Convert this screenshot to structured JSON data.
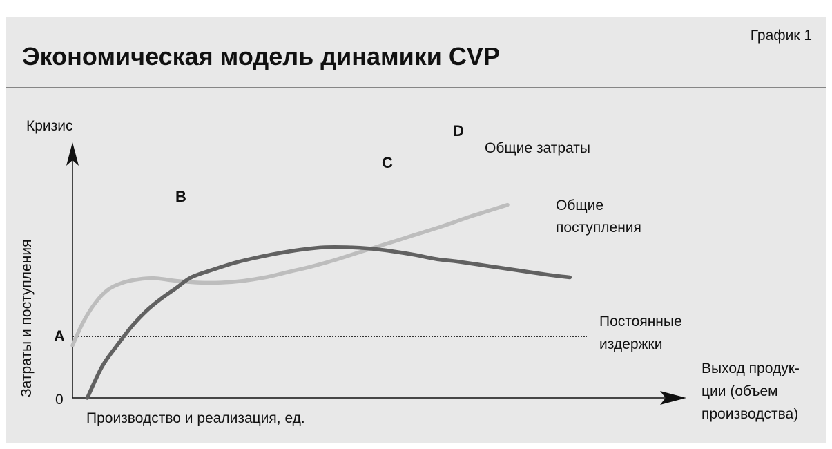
{
  "chart_data": {
    "type": "line",
    "title": "Экономическая модель динамики CVP",
    "figure_label": "График 1",
    "xlabel": "Производство и реализация, ед.",
    "ylabel": "Затраты и поступления",
    "y_top_label": "Кризис",
    "x_end_label": [
      "Выход продук-",
      "ции (объем",
      "производства)"
    ],
    "origin_label": "0",
    "grid": false,
    "series": [
      {
        "name": "Общие затраты",
        "color": "#bdbdbd",
        "points": [
          [
            0.0,
            3.0
          ],
          [
            0.7,
            4.3
          ],
          [
            1.5,
            5.4
          ],
          [
            2.4,
            6.2
          ],
          [
            3.4,
            6.6
          ],
          [
            4.5,
            6.8
          ],
          [
            5.5,
            6.85
          ],
          [
            7.0,
            6.7
          ],
          [
            8.5,
            6.6
          ],
          [
            10.0,
            6.6
          ],
          [
            11.5,
            6.7
          ],
          [
            13.0,
            6.9
          ],
          [
            14.5,
            7.2
          ],
          [
            16.0,
            7.5
          ],
          [
            17.5,
            7.85
          ],
          [
            19.0,
            8.25
          ],
          [
            20.5,
            8.65
          ],
          [
            22.0,
            9.05
          ],
          [
            23.5,
            9.45
          ],
          [
            25.0,
            9.85
          ],
          [
            26.5,
            10.3
          ],
          [
            28.0,
            10.7
          ],
          [
            29.3,
            11.05
          ]
        ]
      },
      {
        "name": "Общие поступления",
        "label_lines": [
          "Общие",
          "поступления"
        ],
        "color": "#616161",
        "points": [
          [
            1.0,
            0.0
          ],
          [
            2.0,
            1.8
          ],
          [
            3.0,
            3.0
          ],
          [
            4.0,
            4.1
          ],
          [
            5.0,
            5.0
          ],
          [
            6.0,
            5.7
          ],
          [
            7.0,
            6.3
          ],
          [
            8.0,
            6.9
          ],
          [
            9.5,
            7.35
          ],
          [
            11.0,
            7.75
          ],
          [
            12.5,
            8.05
          ],
          [
            14.0,
            8.3
          ],
          [
            15.5,
            8.5
          ],
          [
            17.0,
            8.62
          ],
          [
            18.5,
            8.62
          ],
          [
            20.0,
            8.55
          ],
          [
            21.5,
            8.4
          ],
          [
            23.0,
            8.2
          ],
          [
            24.5,
            7.95
          ],
          [
            26.0,
            7.8
          ],
          [
            28.0,
            7.55
          ],
          [
            30.0,
            7.3
          ],
          [
            32.0,
            7.05
          ],
          [
            33.5,
            6.9
          ]
        ]
      }
    ],
    "reference_lines": [
      {
        "name": "Постоянные издержки",
        "label_lines": [
          "Постоянные",
          "издержки"
        ],
        "y": 3.5
      }
    ],
    "annotations": [
      {
        "label": "A",
        "x": 0.0,
        "y": 3.5
      },
      {
        "label": "B",
        "x": 6.6,
        "y": 6.85
      },
      {
        "label": "C",
        "x": 19.8,
        "y": 8.55
      },
      {
        "label": "D",
        "x": 27.9,
        "y": 10.7
      }
    ],
    "xlim": [
      0,
      40
    ],
    "ylim": [
      0,
      14
    ]
  }
}
